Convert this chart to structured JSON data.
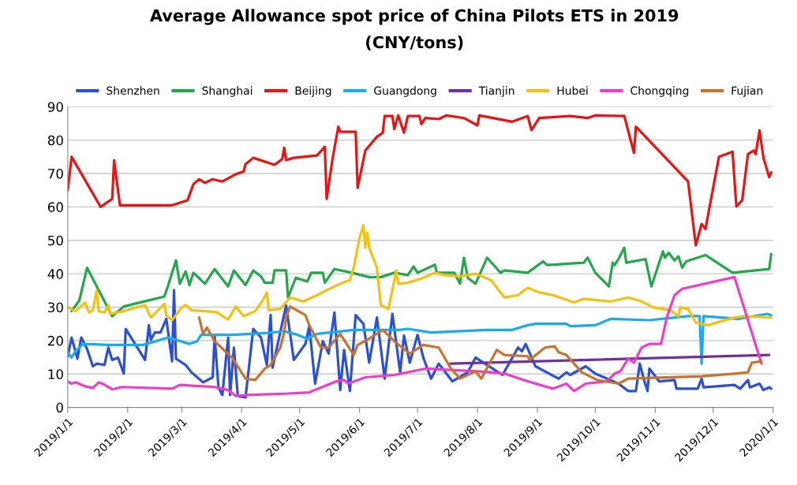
{
  "chart_data": {
    "type": "line",
    "title": "Average Allowance spot price of China Pilots ETS in 2019",
    "subtitle": "(CNY/tons)",
    "xlim": [
      "2019-01-01",
      "2020-01-01"
    ],
    "xticks": [
      {
        "value": "2019-01-01",
        "label": "2019/1/1"
      },
      {
        "value": "2019-02-01",
        "label": "2019/2/1"
      },
      {
        "value": "2019-03-01",
        "label": "2019/3/1"
      },
      {
        "value": "2019-04-01",
        "label": "2019/4/1"
      },
      {
        "value": "2019-05-01",
        "label": "2019/5/1"
      },
      {
        "value": "2019-06-01",
        "label": "2019/6/1"
      },
      {
        "value": "2019-07-01",
        "label": "2019/7/1"
      },
      {
        "value": "2019-08-01",
        "label": "2019/8/1"
      },
      {
        "value": "2019-09-01",
        "label": "2019/9/1"
      },
      {
        "value": "2019-10-01",
        "label": "2019/10/1"
      },
      {
        "value": "2019-11-01",
        "label": "2019/11/1"
      },
      {
        "value": "2019-12-01",
        "label": "2019/12/1"
      },
      {
        "value": "2020-01-01",
        "label": "2020/1/1"
      }
    ],
    "ylim": [
      0,
      90
    ],
    "yticks": [
      0,
      10,
      20,
      30,
      40,
      50,
      60,
      70,
      80,
      90
    ],
    "grid": "y",
    "legend": "top",
    "marker": "none",
    "line_style": "solid",
    "series": [
      {
        "name": "Shenzhen",
        "color": "#2b4fd6",
        "x": [
          "2019-01-01",
          "2019-01-03",
          "2019-01-06",
          "2019-01-08",
          "2019-01-11",
          "2019-01-14",
          "2019-01-16",
          "2019-01-20",
          "2019-01-22",
          "2019-01-24",
          "2019-01-27",
          "2019-01-30",
          "2019-01-31",
          "2019-02-10",
          "2019-02-12",
          "2019-02-13",
          "2019-02-15",
          "2019-02-18",
          "2019-02-21",
          "2019-02-24",
          "2019-02-25",
          "2019-02-26",
          "2019-03-03",
          "2019-03-06",
          "2019-03-12",
          "2019-03-17",
          "2019-03-18",
          "2019-03-20",
          "2019-03-22",
          "2019-03-25",
          "2019-03-26",
          "2019-03-28",
          "2019-03-30",
          "2019-04-03",
          "2019-04-07",
          "2019-04-11",
          "2019-04-14",
          "2019-04-16",
          "2019-04-17",
          "2019-04-24",
          "2019-04-28",
          "2019-05-04",
          "2019-05-06",
          "2019-05-09",
          "2019-05-13",
          "2019-05-16",
          "2019-05-19",
          "2019-05-22",
          "2019-05-24",
          "2019-05-27",
          "2019-05-30",
          "2019-06-03",
          "2019-06-06",
          "2019-06-10",
          "2019-06-14",
          "2019-06-18",
          "2019-06-22",
          "2019-06-24",
          "2019-06-27",
          "2019-07-01",
          "2019-07-04",
          "2019-07-08",
          "2019-07-12",
          "2019-07-19",
          "2019-07-27",
          "2019-07-31",
          "2019-08-06",
          "2019-08-14",
          "2019-08-22",
          "2019-08-24",
          "2019-08-26",
          "2019-08-31",
          "2019-09-12",
          "2019-09-16",
          "2019-09-18",
          "2019-09-26",
          "2019-10-01",
          "2019-10-13",
          "2019-10-18",
          "2019-10-22",
          "2019-10-24",
          "2019-10-26",
          "2019-10-28",
          "2019-10-29",
          "2019-11-03",
          "2019-11-11",
          "2019-11-12",
          "2019-11-23",
          "2019-11-25",
          "2019-11-26",
          "2019-12-12",
          "2019-12-15",
          "2019-12-19",
          "2019-12-20",
          "2019-12-25",
          "2019-12-27",
          "2019-12-30",
          "2019-12-31"
        ],
        "values": [
          15.3,
          20.9,
          14.6,
          20.9,
          17.5,
          12.3,
          13.1,
          12.7,
          17.9,
          14.2,
          14.9,
          10.1,
          23.5,
          14.2,
          24.6,
          20.2,
          22.4,
          22.4,
          26.5,
          13.8,
          35.1,
          14.6,
          12.7,
          10.5,
          7.5,
          9,
          21.3,
          6,
          3.7,
          20.9,
          3.7,
          17.9,
          3.4,
          3,
          23.5,
          20.9,
          12.7,
          27.6,
          11.9,
          30.5,
          14.2,
          19,
          24.3,
          7.1,
          19.8,
          16.1,
          28.4,
          5.2,
          17.2,
          4.9,
          27.6,
          25,
          13.4,
          26.9,
          8.6,
          28,
          10.5,
          21.5,
          13.4,
          21.7,
          14.9,
          8.6,
          13.1,
          7.8,
          10.5,
          14.9,
          12.7,
          9.7,
          17.9,
          16.8,
          19,
          12.3,
          8.6,
          10.5,
          9.7,
          12.3,
          10.1,
          7.1,
          4.9,
          4.9,
          13.1,
          8.6,
          4.9,
          11.6,
          7.8,
          8.2,
          5.6,
          5.6,
          8.6,
          6,
          6.7,
          5.6,
          8.2,
          6,
          7.1,
          5.2,
          6,
          5.6
        ]
      },
      {
        "name": "Shanghai",
        "color": "#22a84a",
        "x": [
          "2019-01-03",
          "2019-01-07",
          "2019-01-11",
          "2019-01-24",
          "2019-01-30",
          "2019-02-20",
          "2019-02-22",
          "2019-02-26",
          "2019-02-28",
          "2019-03-03",
          "2019-03-05",
          "2019-03-07",
          "2019-03-13",
          "2019-03-18",
          "2019-03-25",
          "2019-03-28",
          "2019-04-03",
          "2019-04-07",
          "2019-04-11",
          "2019-04-13",
          "2019-04-17",
          "2019-04-18",
          "2019-04-24",
          "2019-04-25",
          "2019-04-29",
          "2019-05-05",
          "2019-05-07",
          "2019-05-13",
          "2019-05-14",
          "2019-05-19",
          "2019-05-28",
          "2019-06-06",
          "2019-06-12",
          "2019-06-19",
          "2019-06-26",
          "2019-06-29",
          "2019-07-01",
          "2019-07-10",
          "2019-07-11",
          "2019-07-20",
          "2019-07-23",
          "2019-07-25",
          "2019-07-27",
          "2019-07-31",
          "2019-08-06",
          "2019-08-13",
          "2019-08-15",
          "2019-08-27",
          "2019-09-04",
          "2019-09-06",
          "2019-09-25",
          "2019-09-27",
          "2019-10-01",
          "2019-10-08",
          "2019-10-10",
          "2019-10-11",
          "2019-10-13",
          "2019-10-16",
          "2019-10-17",
          "2019-10-27",
          "2019-10-30",
          "2019-11-05",
          "2019-11-06",
          "2019-11-08",
          "2019-11-11",
          "2019-11-13",
          "2019-11-15",
          "2019-11-17",
          "2019-11-27",
          "2019-12-11",
          "2019-12-30",
          "2019-12-31"
        ],
        "values": [
          28.8,
          32,
          41.8,
          27.3,
          30.2,
          33.2,
          36.6,
          44,
          37,
          40.7,
          36.6,
          40.3,
          37,
          41.4,
          36.2,
          41,
          36.6,
          41,
          39.2,
          37.3,
          37.3,
          41,
          41,
          32.9,
          38.8,
          37.7,
          40.3,
          40.3,
          37.3,
          41.4,
          40.3,
          39,
          39,
          40.3,
          39.6,
          42.2,
          40.3,
          42.7,
          40.3,
          40.3,
          37,
          44.8,
          38.8,
          37,
          44.8,
          40.3,
          41,
          40.3,
          43.7,
          42.6,
          43.3,
          44.8,
          40.3,
          36.2,
          43.3,
          42.6,
          44.4,
          47.8,
          43.3,
          44.4,
          36.2,
          46.7,
          44.8,
          46.3,
          44,
          45.2,
          41.8,
          43.7,
          45.6,
          40.3,
          41.4,
          45.9
        ]
      },
      {
        "name": "Beijing",
        "color": "#ee1111",
        "x": [
          "2019-01-01",
          "2019-01-03",
          "2019-01-18",
          "2019-01-24",
          "2019-01-25",
          "2019-01-28",
          "2019-02-24",
          "2019-03-04",
          "2019-03-07",
          "2019-03-10",
          "2019-03-13",
          "2019-03-17",
          "2019-03-22",
          "2019-03-29",
          "2019-04-02",
          "2019-04-03",
          "2019-04-07",
          "2019-04-18",
          "2019-04-22",
          "2019-04-23",
          "2019-04-24",
          "2019-04-28",
          "2019-05-10",
          "2019-05-14",
          "2019-05-15",
          "2019-05-18",
          "2019-05-21",
          "2019-05-22",
          "2019-05-30",
          "2019-05-31",
          "2019-06-04",
          "2019-06-10",
          "2019-06-13",
          "2019-06-14",
          "2019-06-18",
          "2019-06-19",
          "2019-06-21",
          "2019-06-24",
          "2019-06-26",
          "2019-07-02",
          "2019-07-03",
          "2019-07-05",
          "2019-07-12",
          "2019-07-16",
          "2019-07-25",
          "2019-08-01",
          "2019-08-02",
          "2019-08-19",
          "2019-08-27",
          "2019-08-29",
          "2019-09-02",
          "2019-09-18",
          "2019-09-27",
          "2019-10-01",
          "2019-10-16",
          "2019-10-21",
          "2019-10-22",
          "2019-11-18",
          "2019-11-22",
          "2019-11-25",
          "2019-11-27",
          "2019-12-04",
          "2019-12-11",
          "2019-12-13",
          "2019-12-16",
          "2019-12-19",
          "2019-12-22",
          "2019-12-23",
          "2019-12-25",
          "2019-12-27",
          "2019-12-30",
          "2019-12-31"
        ],
        "values": [
          65,
          75,
          60,
          62.4,
          74,
          60.5,
          60.5,
          62,
          66.8,
          68.3,
          67.2,
          68.3,
          67.6,
          69.8,
          70.6,
          72.8,
          74.7,
          72.6,
          74.3,
          77.7,
          74,
          74.7,
          75.4,
          78,
          62.4,
          74.3,
          84,
          82.5,
          82.5,
          65.7,
          76.9,
          81,
          82.2,
          87.2,
          87.2,
          83.3,
          87.4,
          82.2,
          87.2,
          87.2,
          84.8,
          86.6,
          86.3,
          87.4,
          86.6,
          84.4,
          87.4,
          85.5,
          87.2,
          83,
          86.6,
          87.2,
          86.6,
          87.4,
          87.2,
          76.2,
          84,
          67.6,
          48.5,
          54.9,
          53.4,
          75,
          76.5,
          60.1,
          62,
          75.8,
          76.9,
          75.8,
          82.9,
          74.7,
          68.9,
          70.3
        ]
      },
      {
        "name": "Guangdong",
        "color": "#19aaf0",
        "x": [
          "2019-01-01",
          "2019-01-03",
          "2019-01-05",
          "2019-01-09",
          "2019-01-22",
          "2019-02-09",
          "2019-02-22",
          "2019-03-05",
          "2019-03-09",
          "2019-03-11",
          "2019-03-27",
          "2019-04-15",
          "2019-04-23",
          "2019-04-30",
          "2019-05-05",
          "2019-05-10",
          "2019-05-29",
          "2019-06-22",
          "2019-06-26",
          "2019-07-08",
          "2019-08-06",
          "2019-08-19",
          "2019-08-27",
          "2019-08-31",
          "2019-09-16",
          "2019-09-18",
          "2019-10-01",
          "2019-10-09",
          "2019-10-29",
          "2019-11-18",
          "2019-11-24",
          "2019-11-25",
          "2019-11-26",
          "2019-12-14",
          "2019-12-29",
          "2019-12-31"
        ],
        "values": [
          16.4,
          14.9,
          16.8,
          19,
          18.7,
          18.7,
          20.9,
          19,
          19.8,
          21.7,
          21.7,
          22.3,
          22.8,
          21.7,
          20.5,
          22,
          23.2,
          23.2,
          23.5,
          22.4,
          23.2,
          23.2,
          24.6,
          25,
          25,
          24.3,
          24.6,
          26.5,
          26.1,
          27.3,
          27.3,
          13.1,
          27.3,
          26.5,
          28,
          27.6
        ]
      },
      {
        "name": "Tianjin",
        "color": "#7030a0",
        "x": [
          "2019-07-18",
          "2019-12-30"
        ],
        "values": [
          13.1,
          15.7
        ]
      },
      {
        "name": "Hubei",
        "color": "#f5c010",
        "x": [
          "2019-01-01",
          "2019-01-05",
          "2019-01-10",
          "2019-01-12",
          "2019-01-14",
          "2019-01-16",
          "2019-01-17",
          "2019-01-20",
          "2019-01-22",
          "2019-01-23",
          "2019-01-30",
          "2019-02-10",
          "2019-02-13",
          "2019-02-20",
          "2019-02-21",
          "2019-02-24",
          "2019-03-01",
          "2019-03-03",
          "2019-03-06",
          "2019-03-19",
          "2019-03-25",
          "2019-03-29",
          "2019-04-02",
          "2019-04-08",
          "2019-04-12",
          "2019-04-14",
          "2019-04-15",
          "2019-04-21",
          "2019-04-26",
          "2019-05-03",
          "2019-05-10",
          "2019-05-15",
          "2019-05-22",
          "2019-05-27",
          "2019-05-29",
          "2019-06-01",
          "2019-06-03",
          "2019-06-04",
          "2019-06-05",
          "2019-06-06",
          "2019-06-10",
          "2019-06-12",
          "2019-06-16",
          "2019-06-20",
          "2019-06-21",
          "2019-06-26",
          "2019-07-04",
          "2019-07-10",
          "2019-07-15",
          "2019-07-23",
          "2019-07-31",
          "2019-08-08",
          "2019-08-15",
          "2019-08-22",
          "2019-08-27",
          "2019-09-02",
          "2019-09-09",
          "2019-09-20",
          "2019-09-25",
          "2019-10-09",
          "2019-10-18",
          "2019-10-25",
          "2019-10-31",
          "2019-11-09",
          "2019-11-13",
          "2019-11-14",
          "2019-11-18",
          "2019-11-22",
          "2019-11-28",
          "2019-12-12",
          "2019-12-17",
          "2019-12-31"
        ],
        "values": [
          30,
          28.8,
          31.4,
          28.4,
          29.1,
          35.1,
          28.8,
          28.4,
          30.6,
          28,
          28.8,
          30.6,
          26.9,
          31,
          27.6,
          26.1,
          29.9,
          30.6,
          29.1,
          28.5,
          26.3,
          30.2,
          27.3,
          28.8,
          32.1,
          34.4,
          29.1,
          29.5,
          32.9,
          31.7,
          33.6,
          35.1,
          37,
          38.1,
          41.8,
          50.8,
          54.5,
          47.8,
          52.3,
          47.8,
          41.8,
          30.6,
          29.5,
          41,
          37,
          37.3,
          38.8,
          40.3,
          39.6,
          39.2,
          40,
          38.1,
          32.9,
          33.6,
          35.8,
          34.4,
          33.6,
          31.4,
          32.5,
          31.7,
          32.9,
          31.7,
          29.9,
          29.1,
          27.3,
          29.9,
          29.5,
          25.4,
          24.6,
          26.9,
          27.3,
          26.9
        ]
      },
      {
        "name": "Chongqing",
        "color": "#f03ccc",
        "x": [
          "2019-01-01",
          "2019-01-03",
          "2019-01-05",
          "2019-01-10",
          "2019-01-14",
          "2019-01-17",
          "2019-01-20",
          "2019-01-24",
          "2019-01-29",
          "2019-02-24",
          "2019-02-28",
          "2019-03-18",
          "2019-03-25",
          "2019-03-29",
          "2019-04-04",
          "2019-04-23",
          "2019-05-06",
          "2019-05-20",
          "2019-05-24",
          "2019-05-26",
          "2019-06-04",
          "2019-06-19",
          "2019-07-05",
          "2019-08-06",
          "2019-08-15",
          "2019-08-27",
          "2019-09-09",
          "2019-09-16",
          "2019-09-20",
          "2019-09-26",
          "2019-10-07",
          "2019-10-11",
          "2019-10-14",
          "2019-10-18",
          "2019-10-21",
          "2019-10-25",
          "2019-10-29",
          "2019-11-04",
          "2019-11-07",
          "2019-11-11",
          "2019-11-15",
          "2019-12-12",
          "2019-12-26"
        ],
        "values": [
          7.8,
          7.1,
          7.5,
          6.3,
          5.8,
          7.5,
          6.8,
          5.4,
          6.1,
          5.6,
          6.7,
          6.1,
          5.2,
          3.4,
          3.7,
          4.1,
          4.5,
          7.8,
          8.2,
          7.1,
          9,
          9.7,
          11.6,
          10.6,
          10.1,
          7.8,
          5.6,
          7.1,
          4.9,
          7.1,
          7.8,
          10.1,
          10.8,
          14.6,
          13.4,
          17.9,
          19,
          19,
          26.9,
          33.6,
          35.5,
          39,
          13.1
        ]
      },
      {
        "name": "Fujian",
        "color": "#c8732e",
        "x": [
          "2019-03-10",
          "2019-03-12",
          "2019-03-14",
          "2019-03-18",
          "2019-03-27",
          "2019-04-03",
          "2019-04-08",
          "2019-04-13",
          "2019-04-16",
          "2019-04-21",
          "2019-04-23",
          "2019-04-24",
          "2019-04-26",
          "2019-05-04",
          "2019-05-06",
          "2019-05-12",
          "2019-05-16",
          "2019-05-22",
          "2019-05-29",
          "2019-05-31",
          "2019-06-05",
          "2019-06-13",
          "2019-06-19",
          "2019-06-27",
          "2019-07-04",
          "2019-07-12",
          "2019-07-18",
          "2019-07-23",
          "2019-07-31",
          "2019-08-03",
          "2019-08-11",
          "2019-08-15",
          "2019-08-27",
          "2019-08-28",
          "2019-09-05",
          "2019-09-10",
          "2019-09-12",
          "2019-09-16",
          "2019-09-24",
          "2019-10-02",
          "2019-10-13",
          "2019-10-18",
          "2019-11-25",
          "2019-12-12",
          "2019-12-19",
          "2019-12-21",
          "2019-12-26"
        ],
        "values": [
          26.9,
          22,
          23.9,
          19.8,
          14.9,
          8.6,
          8.2,
          11.6,
          12.7,
          17.9,
          22.4,
          26.9,
          30.2,
          27.6,
          24.6,
          17.9,
          17.9,
          22,
          15.7,
          18.7,
          20.2,
          23.2,
          19.8,
          16.1,
          18.7,
          17.9,
          11.9,
          8.6,
          10.8,
          8.6,
          17.2,
          15.7,
          15.3,
          14.2,
          17.9,
          18.3,
          16.5,
          15.7,
          10.5,
          8.2,
          7.1,
          8.6,
          9.3,
          10.1,
          10.5,
          13.4,
          13.8
        ]
      }
    ]
  }
}
